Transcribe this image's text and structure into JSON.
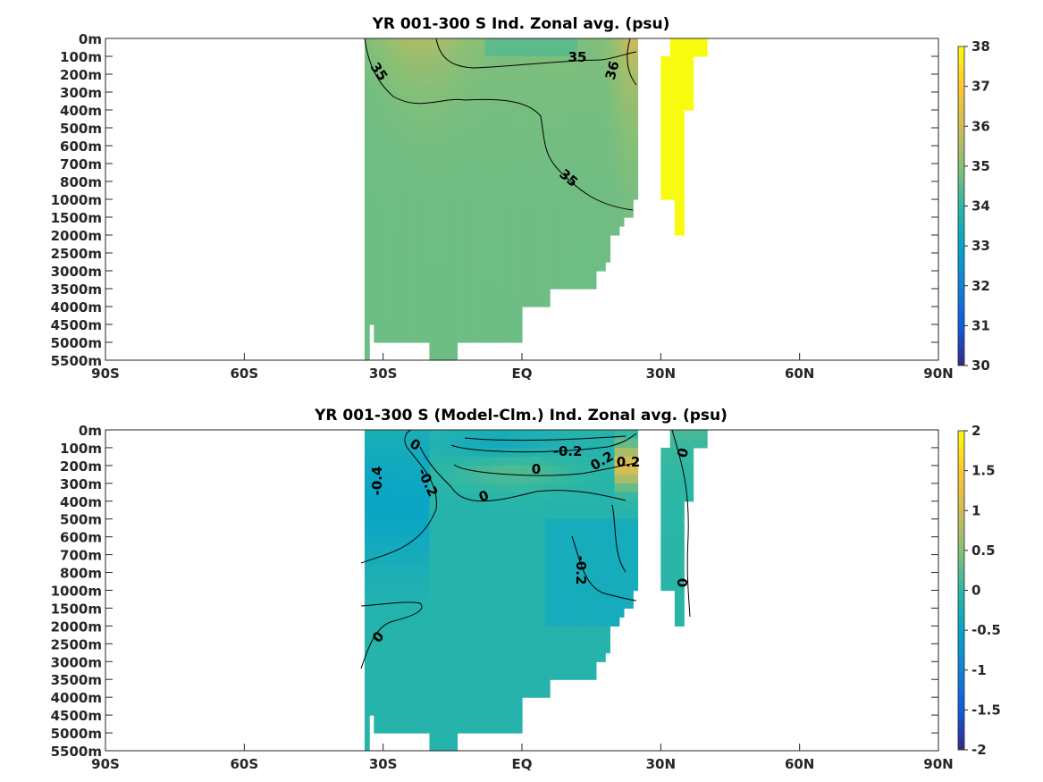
{
  "chart_data": [
    {
      "type": "heatmap",
      "title": "YR 001-300 S Ind. Zonal avg. (psu)",
      "x_ticks": [
        "90S",
        "60S",
        "30S",
        "EQ",
        "30N",
        "60N",
        "90N"
      ],
      "x_values": [
        -90,
        -60,
        -30,
        0,
        30,
        60,
        90
      ],
      "y_ticks": [
        "0m",
        "100m",
        "200m",
        "300m",
        "400m",
        "500m",
        "600m",
        "700m",
        "800m",
        "1000m",
        "1500m",
        "2000m",
        "2500m",
        "3000m",
        "3500m",
        "4000m",
        "4500m",
        "5000m",
        "5500m"
      ],
      "colorbar": {
        "min": 30,
        "max": 38,
        "ticks": [
          "30",
          "31",
          "32",
          "33",
          "34",
          "35",
          "36",
          "37",
          "38"
        ]
      },
      "contour_labels": [
        "35",
        "35",
        "36",
        "35"
      ],
      "field_summary": {
        "domain_lat": [
          -34,
          41
        ],
        "deep_value": 34.7,
        "surface_subtropical_max": 35.8,
        "northern_basin_max": 38
      }
    },
    {
      "type": "heatmap",
      "title": "YR 001-300 S (Model-Clm.) Ind. Zonal avg. (psu)",
      "x_ticks": [
        "90S",
        "60S",
        "30S",
        "EQ",
        "30N",
        "60N",
        "90N"
      ],
      "x_values": [
        -90,
        -60,
        -30,
        0,
        30,
        60,
        90
      ],
      "y_ticks": [
        "0m",
        "100m",
        "200m",
        "300m",
        "400m",
        "500m",
        "600m",
        "700m",
        "800m",
        "1000m",
        "1500m",
        "2000m",
        "2500m",
        "3000m",
        "3500m",
        "4000m",
        "4500m",
        "5000m",
        "5500m"
      ],
      "colorbar": {
        "min": -2,
        "max": 2,
        "ticks": [
          "-2",
          "-1.5",
          "-1",
          "-0.5",
          "0",
          "0.5",
          "1",
          "1.5",
          "2"
        ]
      },
      "contour_labels": [
        "0",
        "-0.4",
        "-0.2",
        "0",
        "-0.2",
        "0",
        "0.2",
        "0.2",
        "-0.2",
        "0",
        "0",
        "0"
      ],
      "field_summary": {
        "domain_lat": [
          -34,
          41
        ],
        "deep_value": -0.1,
        "southern_fresh_min": -0.5,
        "subsurface_max": 0.4
      }
    }
  ],
  "colors": {
    "colormap": [
      "#352a87",
      "#0f5cdd",
      "#1481d6",
      "#06a4ca",
      "#2eb7a4",
      "#87bf77",
      "#d1bb59",
      "#fec832",
      "#f9fb0e"
    ],
    "contour": "#000000"
  }
}
